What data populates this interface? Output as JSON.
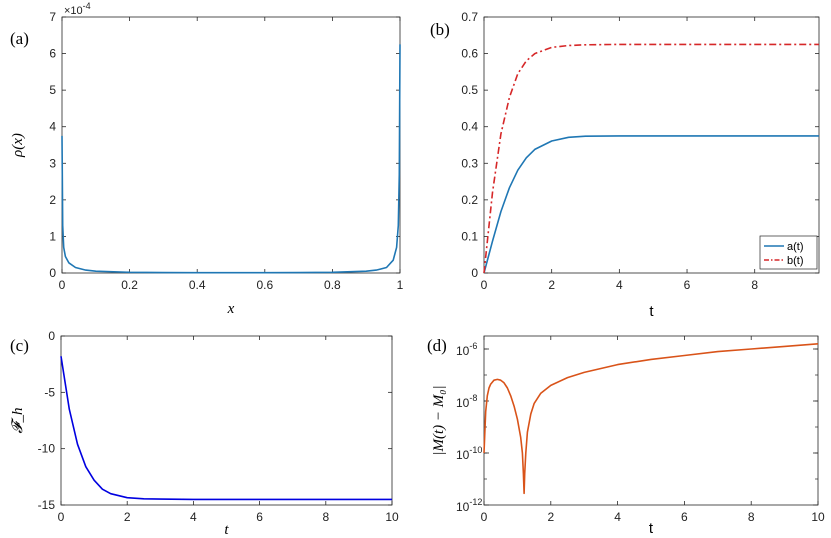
{
  "chart_data": [
    {
      "panel": "(a)",
      "type": "line",
      "xlabel": "x",
      "ylabel": "ρ(x)",
      "xlim": [
        0,
        1
      ],
      "ylim": [
        0,
        7
      ],
      "xticks": [
        "0",
        "0.2",
        "0.4",
        "0.6",
        "0.8",
        "1"
      ],
      "yticks": [
        "0",
        "1",
        "2",
        "3",
        "4",
        "5",
        "6",
        "7"
      ],
      "y_multiplier": "×10",
      "y_multiplier_exp": "-4",
      "color": "#1f77b4",
      "series": [
        {
          "x": [
            0,
            0.002,
            0.005,
            0.01,
            0.02,
            0.04,
            0.07,
            0.1,
            0.2,
            0.3,
            0.4,
            0.5,
            0.6,
            0.7,
            0.8,
            0.9,
            0.93,
            0.96,
            0.98,
            0.99,
            0.995,
            0.998,
            1.0
          ],
          "values": [
            3.75,
            1.3,
            0.7,
            0.45,
            0.28,
            0.15,
            0.08,
            0.05,
            0.02,
            0.01,
            0.008,
            0.008,
            0.008,
            0.01,
            0.02,
            0.05,
            0.08,
            0.15,
            0.35,
            0.7,
            1.3,
            2.7,
            6.25
          ]
        }
      ]
    },
    {
      "panel": "(b)",
      "type": "line",
      "xlabel": "t",
      "ylabel": "",
      "xlim": [
        0,
        9.9
      ],
      "ylim": [
        0,
        0.7
      ],
      "xticks": [
        "0",
        "2",
        "4",
        "6",
        "8"
      ],
      "yticks": [
        "0",
        "0.1",
        "0.2",
        "0.3",
        "0.4",
        "0.5",
        "0.6",
        "0.7"
      ],
      "legend_position": "bottom-right",
      "series": [
        {
          "name": "a(t)",
          "color": "#1f77b4",
          "style": "solid",
          "x": [
            0,
            0.25,
            0.5,
            0.75,
            1.0,
            1.25,
            1.5,
            2.0,
            2.5,
            3.0,
            4.0,
            6.0,
            8.0,
            9.9
          ],
          "values": [
            0,
            0.087,
            0.168,
            0.233,
            0.281,
            0.315,
            0.338,
            0.361,
            0.371,
            0.374,
            0.375,
            0.375,
            0.375,
            0.375
          ]
        },
        {
          "name": "b(t)",
          "color": "#d62728",
          "style": "dash-dot",
          "x": [
            0,
            0.25,
            0.5,
            0.75,
            1.0,
            1.25,
            1.5,
            2.0,
            2.5,
            3.0,
            4.0,
            6.0,
            8.0,
            9.9
          ],
          "values": [
            0,
            0.22,
            0.38,
            0.48,
            0.545,
            0.58,
            0.6,
            0.617,
            0.622,
            0.624,
            0.625,
            0.625,
            0.625,
            0.625
          ]
        }
      ]
    },
    {
      "panel": "(c)",
      "type": "line",
      "xlabel": "t",
      "ylabel": "𝓕_h",
      "xlim": [
        0,
        10
      ],
      "ylim": [
        -15,
        0
      ],
      "xticks": [
        "0",
        "2",
        "4",
        "6",
        "8",
        "10"
      ],
      "yticks": [
        "0",
        "-5",
        "-10",
        "-15"
      ],
      "color": "#0000e0",
      "series": [
        {
          "x": [
            0,
            0.25,
            0.5,
            0.75,
            1.0,
            1.25,
            1.5,
            2.0,
            2.5,
            3.0,
            4.0,
            6.0,
            8.0,
            10.0
          ],
          "values": [
            -1.8,
            -6.5,
            -9.6,
            -11.6,
            -12.8,
            -13.6,
            -14.0,
            -14.35,
            -14.45,
            -14.48,
            -14.5,
            -14.5,
            -14.5,
            -14.5
          ]
        }
      ]
    },
    {
      "panel": "(d)",
      "type": "line",
      "xlabel": "t",
      "ylabel": "|M(t) − M₀|",
      "xlim": [
        0,
        10
      ],
      "ylim_log10": [
        -12,
        -5.5
      ],
      "y_scale": "log",
      "xticks": [
        "0",
        "2",
        "4",
        "6",
        "8",
        "10"
      ],
      "yticks": [
        "10",
        "10",
        "10",
        "10"
      ],
      "ytick_exps": [
        "-6",
        "-8",
        "-10",
        "-12"
      ],
      "color": "#d95319",
      "series": [
        {
          "x": [
            0.0,
            0.05,
            0.1,
            0.15,
            0.2,
            0.3,
            0.4,
            0.5,
            0.6,
            0.7,
            0.8,
            0.9,
            1.0,
            1.1,
            1.15,
            1.18,
            1.2,
            1.22,
            1.25,
            1.3,
            1.4,
            1.5,
            1.7,
            2.0,
            2.5,
            3.0,
            4.0,
            5.0,
            6.0,
            7.0,
            8.0,
            9.0,
            10.0
          ],
          "log10_values": [
            -10.0,
            -8.4,
            -7.8,
            -7.5,
            -7.35,
            -7.2,
            -7.17,
            -7.2,
            -7.3,
            -7.5,
            -7.8,
            -8.2,
            -8.7,
            -9.4,
            -10.0,
            -10.8,
            -11.55,
            -10.8,
            -10.0,
            -9.2,
            -8.5,
            -8.1,
            -7.7,
            -7.4,
            -7.1,
            -6.9,
            -6.6,
            -6.4,
            -6.25,
            -6.1,
            -6.0,
            -5.9,
            -5.8
          ]
        }
      ]
    }
  ]
}
